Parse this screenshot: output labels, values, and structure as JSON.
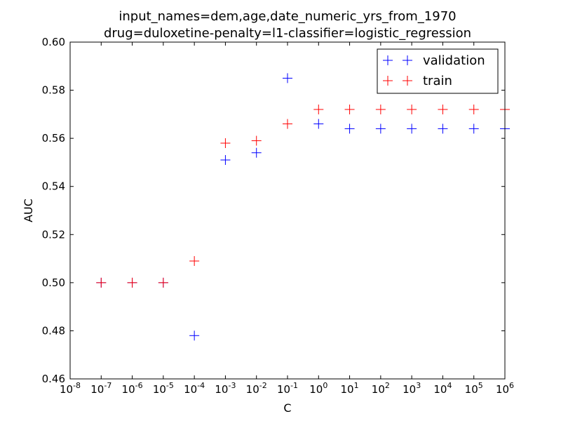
{
  "chart_data": {
    "type": "scatter",
    "title_lines": [
      "input_names=dem,age,date_numeric_yrs_from_1970",
      "drug=duloxetine-penalty=l1-classifier=logistic_regression"
    ],
    "xlabel": "C",
    "ylabel": "AUC",
    "x_scale": "log",
    "xlim": [
      1e-08,
      1000000.0
    ],
    "ylim": [
      0.46,
      0.6
    ],
    "x_ticks": [
      1e-08,
      1e-07,
      1e-06,
      1e-05,
      0.0001,
      0.001,
      0.01,
      0.1,
      1,
      10,
      100,
      1000,
      10000,
      100000,
      1000000
    ],
    "x_tick_exponents": [
      "-8",
      "-7",
      "-6",
      "-5",
      "-4",
      "-3",
      "-2",
      "-1",
      "0",
      "1",
      "2",
      "3",
      "4",
      "5",
      "6"
    ],
    "x_tick_base": "10",
    "y_ticks": [
      0.46,
      0.48,
      0.5,
      0.52,
      0.54,
      0.56,
      0.58,
      0.6
    ],
    "y_tick_labels": [
      "0.46",
      "0.48",
      "0.50",
      "0.52",
      "0.54",
      "0.56",
      "0.58",
      "0.60"
    ],
    "grid": false,
    "legend_position": "top-right",
    "marker": "plus",
    "x": [
      1e-07,
      1e-06,
      1e-05,
      0.0001,
      0.001,
      0.01,
      0.1,
      1,
      10,
      100,
      1000,
      10000,
      100000,
      1000000
    ],
    "series": [
      {
        "name": "validation",
        "color": "#0000ff",
        "values": [
          0.5,
          0.5,
          0.5,
          0.478,
          0.551,
          0.554,
          0.585,
          0.566,
          0.564,
          0.564,
          0.564,
          0.564,
          0.564,
          0.564
        ]
      },
      {
        "name": "train",
        "color": "#ff0000",
        "values": [
          0.5,
          0.5,
          0.5,
          0.509,
          0.558,
          0.559,
          0.566,
          0.572,
          0.572,
          0.572,
          0.572,
          0.572,
          0.572,
          0.572
        ]
      }
    ]
  }
}
